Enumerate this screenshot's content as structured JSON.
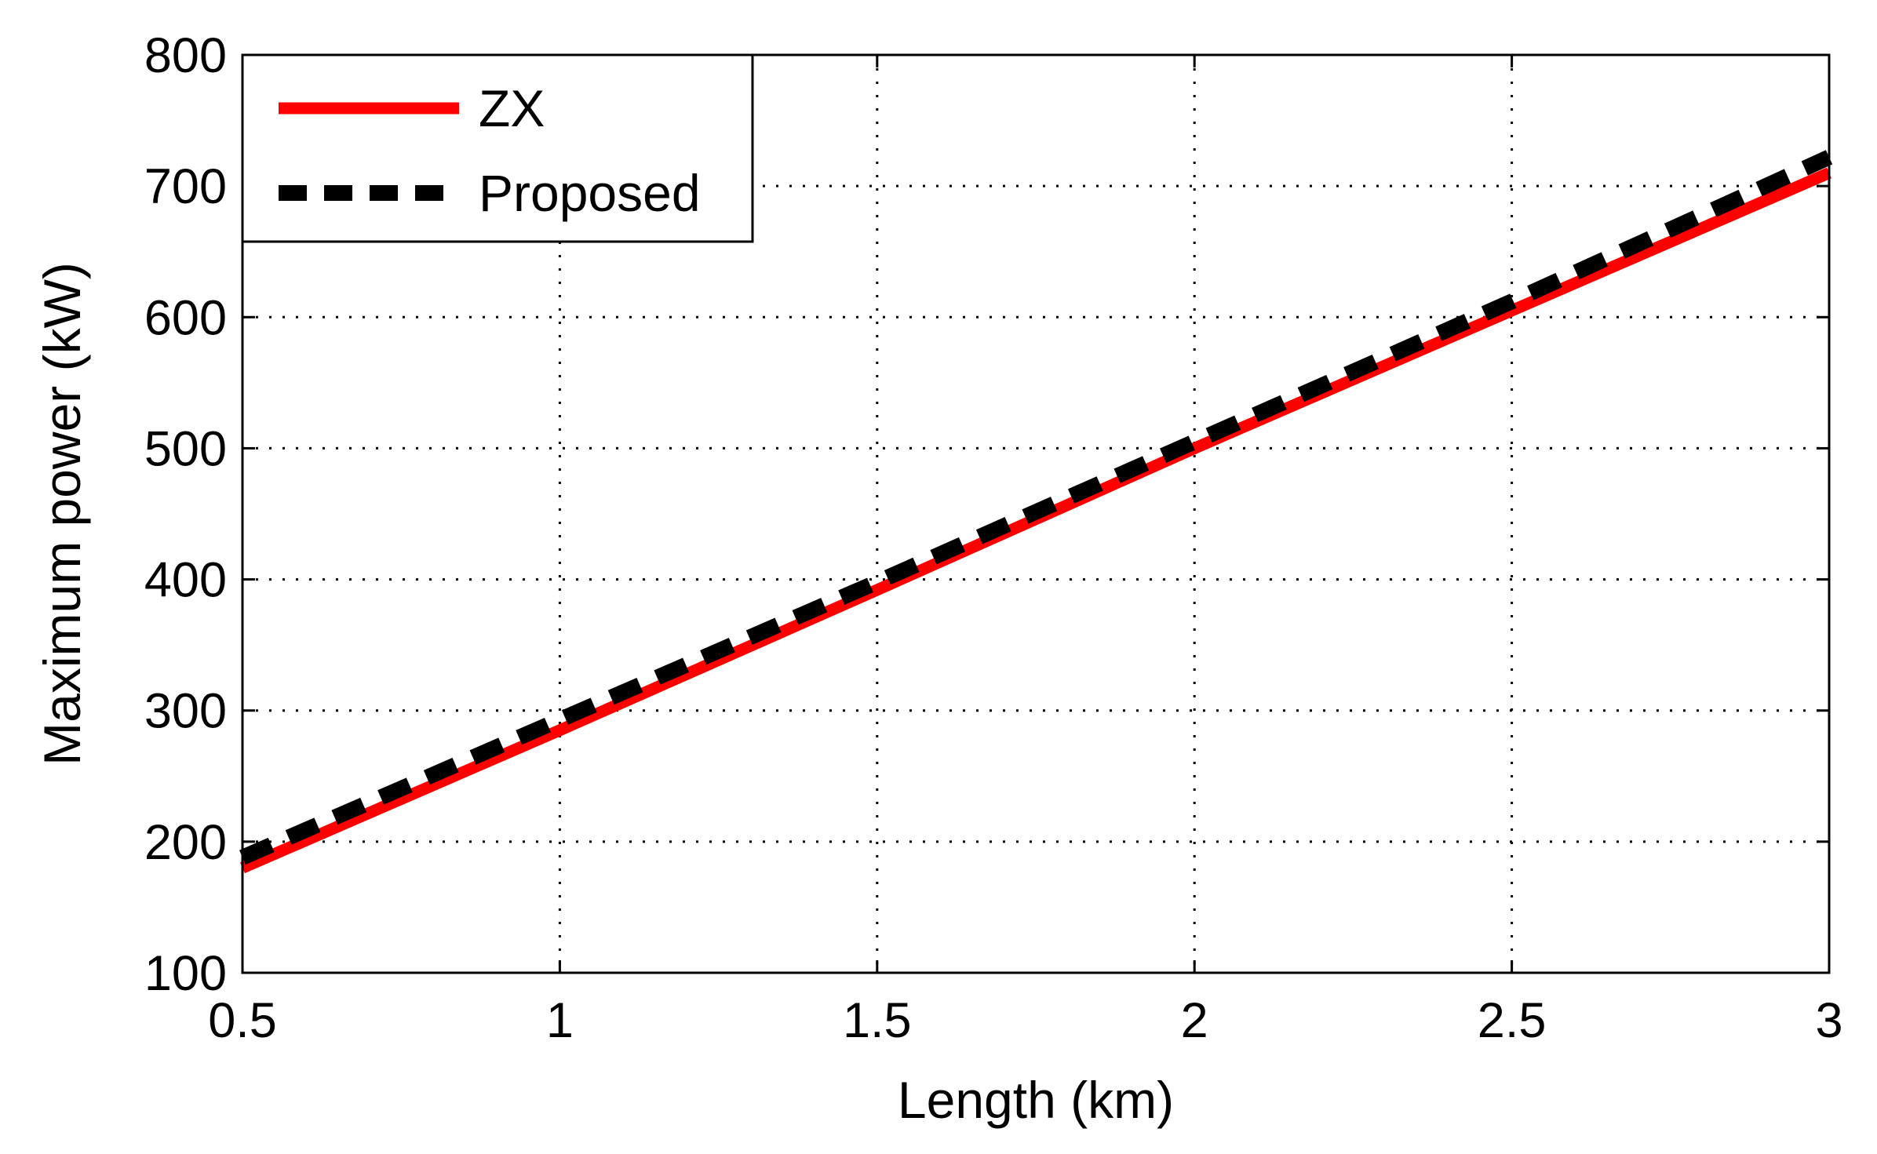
{
  "chart_data": {
    "type": "line",
    "title": "",
    "xlabel": "Length (km)",
    "ylabel": "Maximum power (kW)",
    "xlim": [
      0.5,
      3
    ],
    "ylim": [
      100,
      800
    ],
    "xticks": [
      0.5,
      1,
      1.5,
      2,
      2.5,
      3
    ],
    "xtick_labels": [
      "0.5",
      "1",
      "1.5",
      "2",
      "2.5",
      "3"
    ],
    "yticks": [
      100,
      200,
      300,
      400,
      500,
      600,
      700,
      800
    ],
    "ytick_labels": [
      "100",
      "200",
      "300",
      "400",
      "500",
      "600",
      "700",
      "800"
    ],
    "grid": true,
    "legend_position": "top-left",
    "series": [
      {
        "name": "ZX",
        "color": "#ff0000",
        "style": "solid",
        "x": [
          0.5,
          1,
          1.5,
          2,
          2.5,
          3
        ],
        "y": [
          180,
          285,
          392,
          500,
          605,
          710
        ]
      },
      {
        "name": "Proposed",
        "color": "#000000",
        "style": "dashed",
        "x": [
          0.5,
          1,
          1.5,
          2,
          2.5,
          3
        ],
        "y": [
          188,
          293,
          398,
          505,
          612,
          722
        ]
      }
    ]
  }
}
